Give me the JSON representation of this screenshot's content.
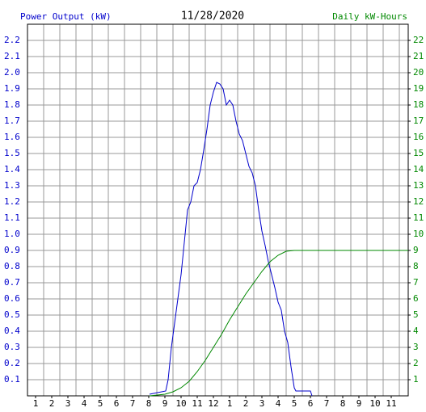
{
  "chart_data": {
    "type": "line",
    "title": "11/28/2020",
    "y_label": "Power Output (kW)",
    "y2_label": "Daily kW-Hours",
    "grid": true,
    "xlim": [
      0.5,
      24.05
    ],
    "xticks": [
      1,
      2,
      3,
      4,
      5,
      6,
      7,
      8,
      9,
      10,
      11,
      12,
      {
        "value": 13,
        "label": "1"
      },
      {
        "value": 14,
        "label": "2"
      },
      {
        "value": 15,
        "label": "3"
      },
      {
        "value": 16,
        "label": "4"
      },
      {
        "value": 17,
        "label": "5"
      },
      {
        "value": 18,
        "label": "6"
      },
      {
        "value": 19,
        "label": "7"
      },
      {
        "value": 20,
        "label": "8"
      },
      {
        "value": 21,
        "label": "9"
      },
      {
        "value": 22,
        "label": "10"
      },
      {
        "value": 23,
        "label": "11"
      }
    ],
    "ylim": [
      0,
      2.3
    ],
    "yticks": [
      0.1,
      0.2,
      0.3,
      0.4,
      0.5,
      0.6,
      0.7,
      0.8,
      0.9,
      {
        "value": 1.0,
        "label": "1.0"
      },
      1.1,
      1.2,
      1.3,
      1.4,
      1.5,
      1.6,
      1.7,
      1.8,
      1.9,
      {
        "value": 2.0,
        "label": "2.0"
      },
      2.1,
      2.2
    ],
    "y2lim": [
      0,
      23
    ],
    "y2ticks": [
      1,
      2,
      3,
      4,
      5,
      6,
      7,
      8,
      9,
      10,
      11,
      12,
      13,
      14,
      15,
      16,
      17,
      18,
      19,
      20,
      21,
      22
    ],
    "series": [
      {
        "name": "Power Output",
        "color": "#0000cc",
        "x": [
          8.05,
          9.05,
          9.2,
          9.4,
          9.6,
          9.8,
          10,
          10.2,
          10.4,
          10.6,
          10.8,
          11,
          11.2,
          11.4,
          11.6,
          11.8,
          12,
          12.2,
          12.4,
          12.6,
          12.8,
          13,
          13.2,
          13.4,
          13.6,
          13.8,
          14,
          14.2,
          14.4,
          14.6,
          14.8,
          15,
          15.2,
          15.4,
          15.6,
          15.8,
          16,
          16.2,
          16.4,
          16.6,
          16.8,
          17,
          17.1,
          18,
          18.1
        ],
        "values": [
          0.01,
          0.03,
          0.1,
          0.3,
          0.45,
          0.6,
          0.75,
          0.95,
          1.15,
          1.2,
          1.3,
          1.32,
          1.4,
          1.52,
          1.65,
          1.8,
          1.88,
          1.94,
          1.93,
          1.9,
          1.8,
          1.83,
          1.8,
          1.7,
          1.62,
          1.58,
          1.5,
          1.42,
          1.38,
          1.3,
          1.15,
          1.02,
          0.93,
          0.83,
          0.75,
          0.67,
          0.58,
          0.53,
          0.4,
          0.33,
          0.18,
          0.05,
          0.03,
          0.03,
          0
        ]
      },
      {
        "name": "Daily kW-Hours",
        "color": "#008800",
        "axis": "y2",
        "x": [
          8.05,
          9,
          9.5,
          10,
          10.5,
          11,
          11.5,
          12,
          12.5,
          13,
          13.5,
          14,
          14.5,
          15,
          15.5,
          16,
          16.5,
          17,
          24.05
        ],
        "values": [
          0,
          0.1,
          0.25,
          0.5,
          0.9,
          1.5,
          2.2,
          3,
          3.8,
          4.7,
          5.5,
          6.3,
          7,
          7.7,
          8.3,
          8.7,
          8.95,
          9,
          9
        ]
      }
    ]
  }
}
